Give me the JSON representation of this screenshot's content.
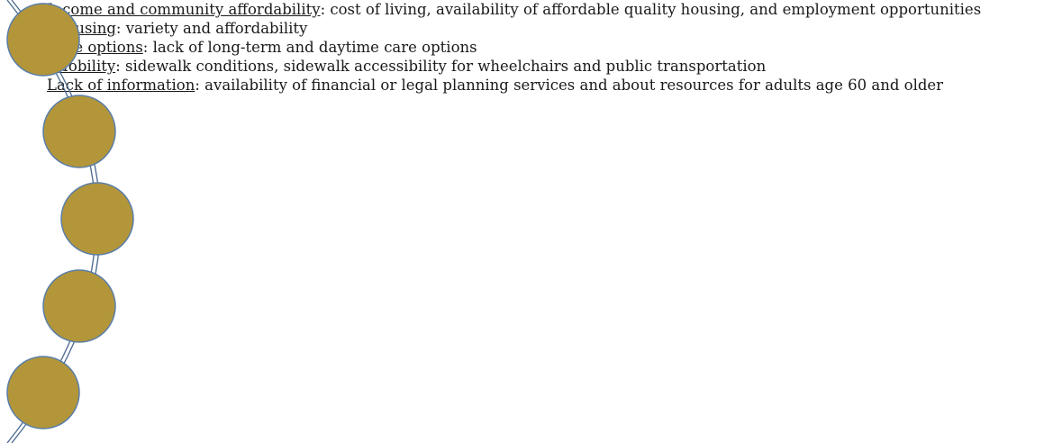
{
  "items": [
    {
      "term": "Income and community affordability",
      "description": ": cost of living, availability of affordable quality housing, and employment opportunities"
    },
    {
      "term": "Housing",
      "description": ": variety and affordability"
    },
    {
      "term": "Care options",
      "description": ": lack of long-term and daytime care options"
    },
    {
      "term": "Mobility",
      "description": ": sidewalk conditions, sidewalk accessibility for wheelchairs and public transportation"
    },
    {
      "term": "Lack of information",
      "description": ": availability of financial or legal planning services and about resources for adults age 60 and older"
    }
  ]
}
